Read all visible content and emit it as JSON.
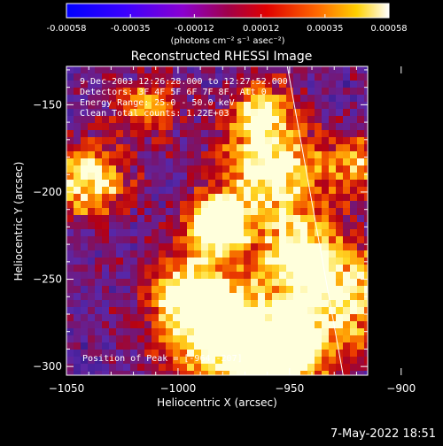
{
  "colorbar": {
    "ticks": [
      "-0.00058",
      "-0.00035",
      "-0.00012",
      "0.00012",
      "0.00035",
      "0.00058"
    ],
    "values": [
      -0.00058,
      -0.00035,
      -0.00012,
      0.00012,
      0.00035,
      0.00058
    ],
    "range": [
      -0.00058,
      0.00058
    ],
    "units": "(photons cm⁻² s⁻¹ asec⁻²)"
  },
  "title": "Reconstructed RHESSI Image",
  "info": {
    "time": "9-Dec-2003 12:26:28.000 to 12:27:52.000",
    "detectors": "Detectors: 3F 4F 5F 6F 7F 8F, Att 0",
    "energy": "Energy Range: 25.0 - 50.0 keV",
    "method": "Clean     Total counts: 1.22E+03"
  },
  "peak": "Position of Peak = [-964,-207]",
  "xaxis": {
    "label": "Heliocentric X (arcsec)",
    "ticks": [
      -1050,
      -1000,
      -950,
      -900
    ],
    "tick_labels": [
      "−1050",
      "−1000",
      "−950",
      "−900"
    ],
    "range": [
      -1050,
      -915
    ]
  },
  "yaxis": {
    "label": "Heliocentric Y (arcsec)",
    "ticks": [
      -300,
      -250,
      -200,
      -150
    ],
    "tick_labels": [
      "−300",
      "−250",
      "−200",
      "−150"
    ],
    "range": [
      -305,
      -128
    ]
  },
  "limb_line": {
    "x": [
      -951,
      -926
    ],
    "y": [
      -128,
      -305
    ]
  },
  "timestamp": "7-May-2022 18:51"
}
